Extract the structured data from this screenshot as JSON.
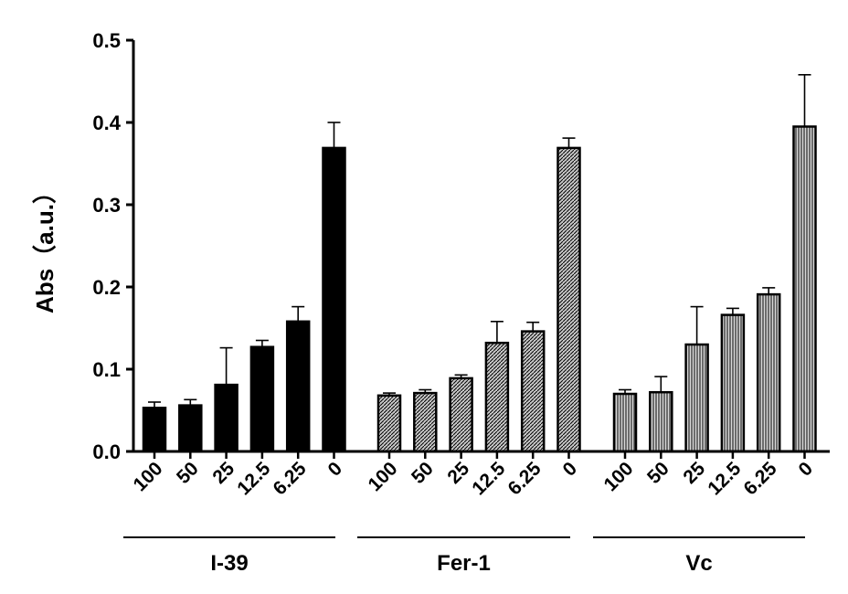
{
  "chart_data": {
    "type": "bar",
    "ylabel": "Abs（a.u.）",
    "xlabel": "",
    "ylim": [
      0,
      0.5
    ],
    "yticks": [
      "0.0",
      "0.1",
      "0.2",
      "0.3",
      "0.4",
      "0.5"
    ],
    "categories": [
      "100",
      "50",
      "25",
      "12.5",
      "6.25",
      "0"
    ],
    "groups": [
      {
        "name": "I-39",
        "fill": "solid",
        "values": [
          0.053,
          0.056,
          0.081,
          0.127,
          0.158,
          0.369
        ],
        "errors": [
          0.007,
          0.007,
          0.045,
          0.008,
          0.018,
          0.031
        ]
      },
      {
        "name": "Fer-1",
        "fill": "hatched",
        "values": [
          0.068,
          0.071,
          0.089,
          0.132,
          0.146,
          0.369
        ],
        "errors": [
          0.003,
          0.004,
          0.004,
          0.026,
          0.011,
          0.012
        ]
      },
      {
        "name": "Vc",
        "fill": "vertical-lines",
        "values": [
          0.07,
          0.072,
          0.13,
          0.166,
          0.191,
          0.395
        ],
        "errors": [
          0.005,
          0.019,
          0.046,
          0.008,
          0.008,
          0.063
        ]
      }
    ],
    "colors": {
      "bar": "#000000",
      "hatch_background": "#c8c8c8"
    }
  }
}
